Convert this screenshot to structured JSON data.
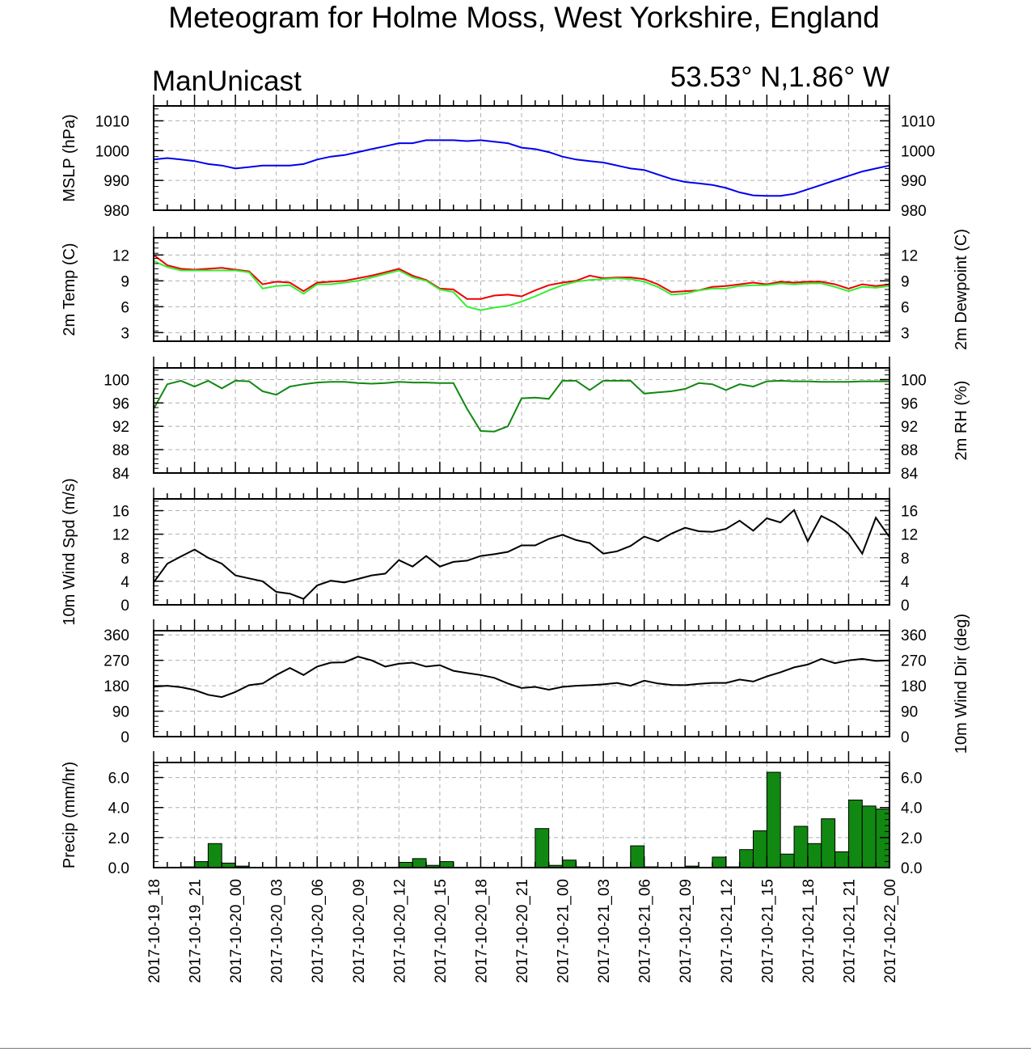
{
  "title": "Meteogram for Holme Moss, West Yorkshire, England",
  "model": "ManUnicast",
  "location": "53.53° N,1.86° W",
  "x_tick_labels": [
    "2017-10-19_18",
    "2017-10-19_21",
    "2017-10-20_00",
    "2017-10-20_03",
    "2017-10-20_06",
    "2017-10-20_09",
    "2017-10-20_12",
    "2017-10-20_15",
    "2017-10-20_18",
    "2017-10-20_21",
    "2017-10-21_00",
    "2017-10-21_03",
    "2017-10-21_06",
    "2017-10-21_09",
    "2017-10-21_12",
    "2017-10-21_15",
    "2017-10-21_18",
    "2017-10-21_21",
    "2017-10-22_00"
  ],
  "colors": {
    "mslp": "#0000ee",
    "temp": "#ee0000",
    "dewpoint": "#33ee33",
    "rh": "#118811",
    "wind": "#000000",
    "precip_fill": "#118811",
    "grid": "#b0b0b0"
  },
  "chart_data": [
    {
      "type": "line",
      "ylabel": "MSLP (hPa)",
      "ylabel_right": "",
      "ylim": [
        980,
        1015
      ],
      "yticks": [
        980,
        990,
        1000,
        1010
      ],
      "grid": true,
      "x_start": "2017-10-19_18",
      "x_step_hours": 1,
      "series": [
        {
          "values": [
            997,
            997.5,
            997,
            996.5,
            995.5,
            995,
            994,
            994.5,
            995,
            995,
            995,
            995.5,
            997,
            998,
            998.5,
            999.5,
            1000.5,
            1001.5,
            1002.5,
            1002.5,
            1003.5,
            1003.5,
            1003.5,
            1003.2,
            1003.5,
            1003,
            1002.5,
            1001,
            1000.5,
            999.5,
            998,
            997,
            996.5,
            996,
            995,
            994,
            993.5,
            992,
            990.5,
            989.5,
            989,
            988.5,
            987.5,
            986,
            985,
            984.8,
            984.8,
            985.5,
            987,
            988.5,
            990,
            991.5,
            993,
            994,
            995
          ]
        }
      ]
    },
    {
      "type": "line",
      "ylabel": "2m Temp (C)",
      "ylabel_right": "2m Dewpoint (C)",
      "ylim": [
        2,
        14
      ],
      "yticks": [
        3,
        6,
        9,
        12
      ],
      "grid": true,
      "x_start": "2017-10-19_18",
      "x_step_hours": 1,
      "series": [
        {
          "role": "temp",
          "values": [
            12,
            10.8,
            10.4,
            10.3,
            10.4,
            10.5,
            10.3,
            10.1,
            8.6,
            8.9,
            8.8,
            7.8,
            8.8,
            8.9,
            9.0,
            9.3,
            9.6,
            10.0,
            10.4,
            9.6,
            9.1,
            8.1,
            8.0,
            6.9,
            6.9,
            7.3,
            7.4,
            7.2,
            7.9,
            8.5,
            8.8,
            9.0,
            9.6,
            9.3,
            9.4,
            9.4,
            9.2,
            8.6,
            7.7,
            7.8,
            7.9,
            8.3,
            8.4,
            8.6,
            8.8,
            8.6,
            8.9,
            8.8,
            8.9,
            8.9,
            8.6,
            8.1,
            8.6,
            8.4,
            8.6
          ]
        },
        {
          "role": "dewpoint",
          "values": [
            11.3,
            10.6,
            10.2,
            10.2,
            10.2,
            10.2,
            10.2,
            10.0,
            8.1,
            8.4,
            8.5,
            7.5,
            8.6,
            8.6,
            8.8,
            9.0,
            9.4,
            9.8,
            10.2,
            9.4,
            9.0,
            8.0,
            7.7,
            6.0,
            5.6,
            5.9,
            6.1,
            6.6,
            7.2,
            7.9,
            8.5,
            8.9,
            9.1,
            9.2,
            9.3,
            9.2,
            8.9,
            8.3,
            7.4,
            7.5,
            7.9,
            8.1,
            8.1,
            8.4,
            8.5,
            8.5,
            8.7,
            8.6,
            8.7,
            8.7,
            8.3,
            7.8,
            8.3,
            8.2,
            8.4
          ]
        }
      ]
    },
    {
      "type": "line",
      "ylabel": "",
      "ylabel_right": "2m RH (%)",
      "ylim": [
        84,
        102
      ],
      "yticks": [
        84,
        88,
        92,
        96,
        100
      ],
      "grid": true,
      "x_start": "2017-10-19_18",
      "x_step_hours": 1,
      "series": [
        {
          "values": [
            95,
            99.2,
            99.8,
            98.8,
            99.8,
            98.5,
            99.8,
            99.7,
            98,
            97.4,
            98.8,
            99.2,
            99.5,
            99.6,
            99.6,
            99.4,
            99.3,
            99.4,
            99.6,
            99.5,
            99.5,
            99.4,
            99.4,
            95,
            91.2,
            91.1,
            92,
            96.8,
            96.9,
            96.7,
            99.8,
            99.8,
            98.2,
            99.8,
            99.8,
            99.8,
            97.6,
            97.8,
            98,
            98.4,
            99.4,
            99.2,
            98.2,
            99.2,
            98.8,
            99.7,
            99.8,
            99.7,
            99.7,
            99.6,
            99.6,
            99.6,
            99.7,
            99.7,
            99.7
          ]
        }
      ]
    },
    {
      "type": "line",
      "ylabel": "10m Wind Spd (m/s)",
      "ylabel_right": "",
      "ylim": [
        0,
        18
      ],
      "yticks": [
        0,
        4,
        8,
        12,
        16
      ],
      "grid": true,
      "x_start": "2017-10-19_18",
      "x_step_hours": 1,
      "series": [
        {
          "values": [
            3.8,
            7,
            8.2,
            9.4,
            8,
            7,
            5,
            4.5,
            4,
            2.2,
            1.9,
            1,
            3.3,
            4.1,
            3.8,
            4.4,
            5,
            5.3,
            7.6,
            6.5,
            8.3,
            6.5,
            7.3,
            7.5,
            8.3,
            8.6,
            9,
            10.1,
            10.1,
            11.2,
            11.9,
            11,
            10.5,
            8.7,
            9.1,
            10,
            11.6,
            10.8,
            12.1,
            13.1,
            12.5,
            12.4,
            12.9,
            14.3,
            12.6,
            14.7,
            14,
            16.1,
            10.8,
            15.1,
            13.9,
            12.1,
            8.7,
            14.8,
            11.5
          ]
        }
      ]
    },
    {
      "type": "line",
      "ylabel": "",
      "ylabel_right": "10m Wind Dir (deg)",
      "ylim": [
        0,
        375
      ],
      "yticks": [
        0,
        90,
        180,
        270,
        360
      ],
      "grid": true,
      "x_start": "2017-10-19_18",
      "x_step_hours": 1,
      "series": [
        {
          "values": [
            177,
            180,
            175,
            165,
            148,
            140,
            158,
            182,
            188,
            218,
            243,
            218,
            248,
            262,
            263,
            283,
            270,
            248,
            258,
            262,
            248,
            253,
            233,
            225,
            218,
            208,
            188,
            172,
            176,
            166,
            176,
            180,
            182,
            185,
            190,
            180,
            198,
            188,
            183,
            182,
            187,
            190,
            190,
            202,
            195,
            213,
            228,
            245,
            255,
            275,
            260,
            270,
            275,
            268,
            270
          ]
        }
      ]
    },
    {
      "type": "bar",
      "ylabel": "Precip (mm/hr)",
      "ylabel_right": "",
      "ylim": [
        0,
        7
      ],
      "yticks": [
        0,
        2,
        4,
        6
      ],
      "ytick_labels": [
        "0.0",
        "2.0",
        "4.0",
        "6.0"
      ],
      "grid": true,
      "x_start": "2017-10-19_18",
      "x_step_hours": 1,
      "values": [
        0,
        0,
        0.05,
        0.4,
        1.6,
        0.3,
        0.1,
        0,
        0,
        0,
        0,
        0,
        0,
        0,
        0,
        0,
        0,
        0,
        0.35,
        0.6,
        0.15,
        0.4,
        0,
        0,
        0,
        0,
        0,
        0,
        2.6,
        0.15,
        0.5,
        0.05,
        0,
        0,
        0,
        1.45,
        0.05,
        0,
        0,
        0.1,
        0,
        0.7,
        0.05,
        1.2,
        2.45,
        6.35,
        0.9,
        2.75,
        1.6,
        3.25,
        1.05,
        4.5,
        4.1,
        3.9
      ]
    }
  ]
}
